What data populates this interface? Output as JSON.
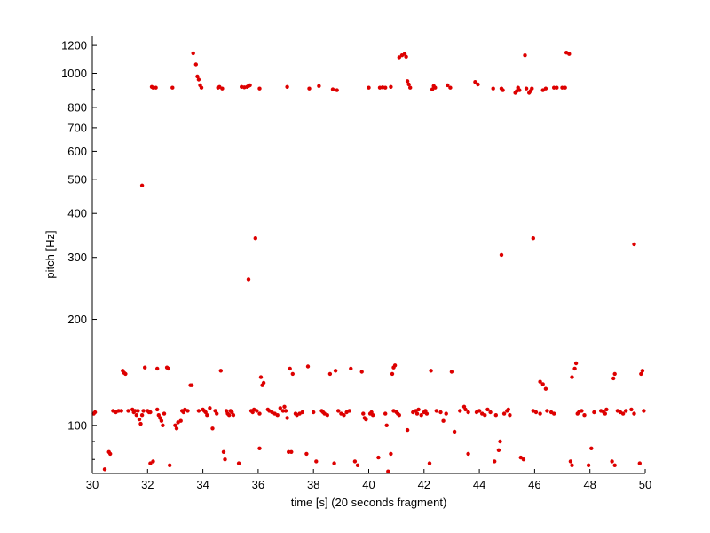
{
  "chart_data": {
    "type": "scatter",
    "title": "",
    "xlabel": "time [s] (20 seconds fragment)",
    "ylabel": "pitch [Hz]",
    "xlim": [
      30,
      50
    ],
    "ylim": [
      73,
      1280
    ],
    "yscale": "log",
    "xticks": [
      "30",
      "32",
      "34",
      "36",
      "38",
      "40",
      "42",
      "44",
      "46",
      "48",
      "50"
    ],
    "yticks": [
      "100",
      "200",
      "300",
      "400",
      "500",
      "600",
      "700",
      "800",
      "1000",
      "1200"
    ],
    "grid": false,
    "marker_color": "#dd0000",
    "series": [
      {
        "points": [
          [
            30.05,
            108
          ],
          [
            30.1,
            109
          ],
          [
            30.45,
            75
          ],
          [
            30.6,
            84
          ],
          [
            30.65,
            83
          ],
          [
            30.75,
            110
          ],
          [
            30.85,
            109
          ],
          [
            30.95,
            110
          ],
          [
            31.05,
            110
          ],
          [
            31.1,
            143
          ],
          [
            31.15,
            141
          ],
          [
            31.2,
            140
          ],
          [
            31.3,
            110
          ],
          [
            31.45,
            111
          ],
          [
            31.5,
            109
          ],
          [
            31.55,
            110
          ],
          [
            31.6,
            107
          ],
          [
            31.65,
            110
          ],
          [
            31.7,
            104
          ],
          [
            31.75,
            101
          ],
          [
            31.8,
            107
          ],
          [
            31.85,
            110
          ],
          [
            31.8,
            480
          ],
          [
            31.9,
            146
          ],
          [
            32.0,
            110
          ],
          [
            32.05,
            109
          ],
          [
            32.1,
            109
          ],
          [
            32.1,
            78
          ],
          [
            32.15,
            915
          ],
          [
            32.2,
            910
          ],
          [
            32.3,
            910
          ],
          [
            32.2,
            79
          ],
          [
            32.35,
            145
          ],
          [
            32.35,
            111
          ],
          [
            32.4,
            107
          ],
          [
            32.45,
            105
          ],
          [
            32.5,
            103
          ],
          [
            32.55,
            100
          ],
          [
            32.6,
            108
          ],
          [
            32.7,
            146
          ],
          [
            32.75,
            145
          ],
          [
            32.8,
            77
          ],
          [
            32.9,
            910
          ],
          [
            33.0,
            100
          ],
          [
            33.05,
            98
          ],
          [
            33.1,
            102
          ],
          [
            33.2,
            103
          ],
          [
            33.25,
            110
          ],
          [
            33.3,
            109
          ],
          [
            33.35,
            111
          ],
          [
            33.45,
            110
          ],
          [
            33.55,
            130
          ],
          [
            33.6,
            130
          ],
          [
            33.65,
            1140
          ],
          [
            33.75,
            1060
          ],
          [
            33.8,
            980
          ],
          [
            33.85,
            960
          ],
          [
            33.9,
            925
          ],
          [
            33.95,
            910
          ],
          [
            33.85,
            110
          ],
          [
            34.0,
            111
          ],
          [
            34.05,
            110
          ],
          [
            34.1,
            109
          ],
          [
            34.15,
            107
          ],
          [
            34.25,
            112
          ],
          [
            34.35,
            98
          ],
          [
            34.45,
            110
          ],
          [
            34.5,
            108
          ],
          [
            34.55,
            910
          ],
          [
            34.6,
            915
          ],
          [
            34.65,
            143
          ],
          [
            34.7,
            905
          ],
          [
            34.75,
            84
          ],
          [
            34.8,
            80
          ],
          [
            34.85,
            110
          ],
          [
            34.9,
            108
          ],
          [
            34.95,
            107
          ],
          [
            35.0,
            110
          ],
          [
            35.05,
            109
          ],
          [
            35.1,
            107
          ],
          [
            35.3,
            78
          ],
          [
            35.4,
            915
          ],
          [
            35.5,
            912
          ],
          [
            35.6,
            915
          ],
          [
            35.65,
            260
          ],
          [
            35.65,
            920
          ],
          [
            35.7,
            925
          ],
          [
            35.75,
            110
          ],
          [
            35.8,
            109
          ],
          [
            35.85,
            111
          ],
          [
            35.9,
            340
          ],
          [
            35.95,
            110
          ],
          [
            36.05,
            108
          ],
          [
            36.05,
            905
          ],
          [
            36.05,
            86
          ],
          [
            36.1,
            137
          ],
          [
            36.15,
            130
          ],
          [
            36.2,
            132
          ],
          [
            36.35,
            111
          ],
          [
            36.4,
            110
          ],
          [
            36.5,
            109
          ],
          [
            36.6,
            108
          ],
          [
            36.7,
            107
          ],
          [
            36.8,
            112
          ],
          [
            36.9,
            110
          ],
          [
            36.95,
            113
          ],
          [
            37.0,
            110
          ],
          [
            37.05,
            105
          ],
          [
            37.05,
            915
          ],
          [
            37.1,
            84
          ],
          [
            37.15,
            145
          ],
          [
            37.2,
            84
          ],
          [
            37.25,
            140
          ],
          [
            37.35,
            108
          ],
          [
            37.4,
            107
          ],
          [
            37.5,
            108
          ],
          [
            37.6,
            109
          ],
          [
            37.75,
            83
          ],
          [
            37.8,
            147
          ],
          [
            37.85,
            905
          ],
          [
            38.0,
            109
          ],
          [
            38.1,
            79
          ],
          [
            38.2,
            920
          ],
          [
            38.3,
            110
          ],
          [
            38.35,
            109
          ],
          [
            38.4,
            108
          ],
          [
            38.5,
            107
          ],
          [
            38.6,
            140
          ],
          [
            38.7,
            900
          ],
          [
            38.75,
            78
          ],
          [
            38.8,
            143
          ],
          [
            38.85,
            895
          ],
          [
            38.9,
            110
          ],
          [
            39.0,
            108
          ],
          [
            39.1,
            107
          ],
          [
            39.2,
            109
          ],
          [
            39.3,
            110
          ],
          [
            39.35,
            145
          ],
          [
            39.5,
            79
          ],
          [
            39.6,
            77
          ],
          [
            39.75,
            142
          ],
          [
            39.8,
            108
          ],
          [
            39.85,
            105
          ],
          [
            39.9,
            104
          ],
          [
            40.0,
            910
          ],
          [
            40.05,
            108
          ],
          [
            40.1,
            109
          ],
          [
            40.15,
            107
          ],
          [
            40.35,
            81
          ],
          [
            40.4,
            910
          ],
          [
            40.5,
            912
          ],
          [
            40.6,
            108
          ],
          [
            40.6,
            910
          ],
          [
            40.65,
            100
          ],
          [
            40.7,
            74
          ],
          [
            40.8,
            83
          ],
          [
            40.8,
            915
          ],
          [
            40.85,
            140
          ],
          [
            40.9,
            146
          ],
          [
            40.95,
            148
          ],
          [
            40.9,
            110
          ],
          [
            41.0,
            109
          ],
          [
            41.05,
            108
          ],
          [
            41.1,
            107
          ],
          [
            41.1,
            1110
          ],
          [
            41.2,
            1125
          ],
          [
            41.3,
            1135
          ],
          [
            41.35,
            1115
          ],
          [
            41.4,
            950
          ],
          [
            41.45,
            930
          ],
          [
            41.5,
            910
          ],
          [
            41.4,
            97
          ],
          [
            41.6,
            109
          ],
          [
            41.7,
            110
          ],
          [
            41.75,
            108
          ],
          [
            41.8,
            111
          ],
          [
            41.9,
            107
          ],
          [
            42.0,
            109
          ],
          [
            42.05,
            110
          ],
          [
            42.1,
            108
          ],
          [
            42.2,
            78
          ],
          [
            42.25,
            143
          ],
          [
            42.3,
            900
          ],
          [
            42.35,
            920
          ],
          [
            42.4,
            910
          ],
          [
            42.45,
            110
          ],
          [
            42.6,
            109
          ],
          [
            42.7,
            103
          ],
          [
            42.8,
            108
          ],
          [
            42.85,
            925
          ],
          [
            42.95,
            910
          ],
          [
            43.0,
            142
          ],
          [
            43.1,
            96
          ],
          [
            43.3,
            110
          ],
          [
            43.45,
            113
          ],
          [
            43.5,
            111
          ],
          [
            43.6,
            109
          ],
          [
            43.6,
            83
          ],
          [
            43.85,
            945
          ],
          [
            43.95,
            930
          ],
          [
            43.9,
            109
          ],
          [
            44.0,
            110
          ],
          [
            44.1,
            108
          ],
          [
            44.2,
            107
          ],
          [
            44.3,
            111
          ],
          [
            44.4,
            109
          ],
          [
            44.5,
            905
          ],
          [
            44.55,
            79
          ],
          [
            44.6,
            107
          ],
          [
            44.7,
            85
          ],
          [
            44.75,
            90
          ],
          [
            44.8,
            305
          ],
          [
            44.8,
            905
          ],
          [
            44.85,
            895
          ],
          [
            44.9,
            108
          ],
          [
            45.0,
            110
          ],
          [
            45.05,
            111
          ],
          [
            45.1,
            107
          ],
          [
            45.3,
            880
          ],
          [
            45.35,
            890
          ],
          [
            45.4,
            910
          ],
          [
            45.45,
            895
          ],
          [
            45.5,
            81
          ],
          [
            45.6,
            80
          ],
          [
            45.65,
            1125
          ],
          [
            45.7,
            905
          ],
          [
            45.8,
            880
          ],
          [
            45.85,
            890
          ],
          [
            45.9,
            905
          ],
          [
            45.95,
            340
          ],
          [
            45.95,
            110
          ],
          [
            46.05,
            109
          ],
          [
            46.2,
            108
          ],
          [
            46.2,
            133
          ],
          [
            46.3,
            131
          ],
          [
            46.4,
            127
          ],
          [
            46.3,
            895
          ],
          [
            46.4,
            905
          ],
          [
            46.45,
            110
          ],
          [
            46.6,
            109
          ],
          [
            46.7,
            108
          ],
          [
            46.7,
            910
          ],
          [
            46.8,
            910
          ],
          [
            47.0,
            910
          ],
          [
            47.1,
            910
          ],
          [
            47.15,
            1145
          ],
          [
            47.25,
            1135
          ],
          [
            47.3,
            79
          ],
          [
            47.35,
            77
          ],
          [
            47.35,
            137
          ],
          [
            47.45,
            145
          ],
          [
            47.5,
            150
          ],
          [
            47.55,
            108
          ],
          [
            47.6,
            109
          ],
          [
            47.7,
            110
          ],
          [
            47.8,
            107
          ],
          [
            47.95,
            77
          ],
          [
            48.05,
            86
          ],
          [
            48.15,
            109
          ],
          [
            48.4,
            110
          ],
          [
            48.5,
            109
          ],
          [
            48.55,
            108
          ],
          [
            48.6,
            111
          ],
          [
            48.8,
            79
          ],
          [
            48.85,
            136
          ],
          [
            48.9,
            140
          ],
          [
            48.9,
            77
          ],
          [
            49.0,
            110
          ],
          [
            49.1,
            109
          ],
          [
            49.2,
            108
          ],
          [
            49.3,
            110
          ],
          [
            49.5,
            111
          ],
          [
            49.6,
            327
          ],
          [
            49.6,
            108
          ],
          [
            49.8,
            78
          ],
          [
            49.85,
            140
          ],
          [
            49.9,
            143
          ],
          [
            49.95,
            110
          ]
        ]
      }
    ]
  }
}
